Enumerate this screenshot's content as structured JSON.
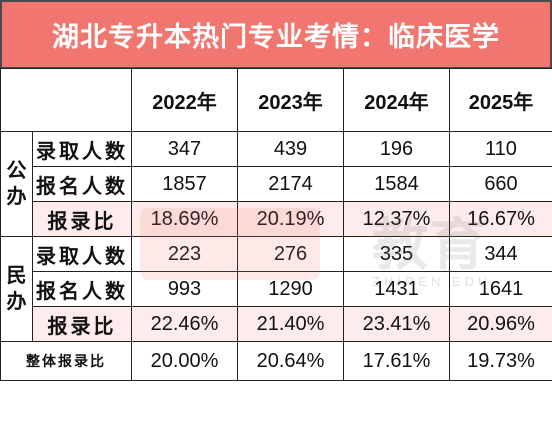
{
  "title": "湖北专升本热门专业考情：临床医学",
  "years": [
    "2022年",
    "2023年",
    "2024年",
    "2025年"
  ],
  "groups": [
    {
      "name_chars": [
        "公",
        "办"
      ],
      "rows": [
        {
          "label": "录取人数",
          "values": [
            "347",
            "439",
            "196",
            "110"
          ]
        },
        {
          "label": "报名人数",
          "values": [
            "1857",
            "2174",
            "1584",
            "660"
          ]
        },
        {
          "label": "报录比",
          "values": [
            "18.69%",
            "20.19%",
            "12.37%",
            "16.67%"
          ]
        }
      ]
    },
    {
      "name_chars": [
        "民",
        "办"
      ],
      "rows": [
        {
          "label": "录取人数",
          "values": [
            "223",
            "276",
            "335",
            "344"
          ]
        },
        {
          "label": "报名人数",
          "values": [
            "993",
            "1290",
            "1431",
            "1641"
          ]
        },
        {
          "label": "报录比",
          "values": [
            "22.46%",
            "21.40%",
            "23.41%",
            "20.96%"
          ]
        }
      ]
    }
  ],
  "overall": {
    "label": "整体报录比",
    "values": [
      "20.00%",
      "20.64%",
      "17.61%",
      "19.73%"
    ]
  },
  "watermark": {
    "text": "教育",
    "sub": "ZHIREN EDU"
  },
  "colors": {
    "title_background": "#f27670",
    "ratio_row_background": "#fdeceb",
    "overall_text": "#e3131b"
  }
}
